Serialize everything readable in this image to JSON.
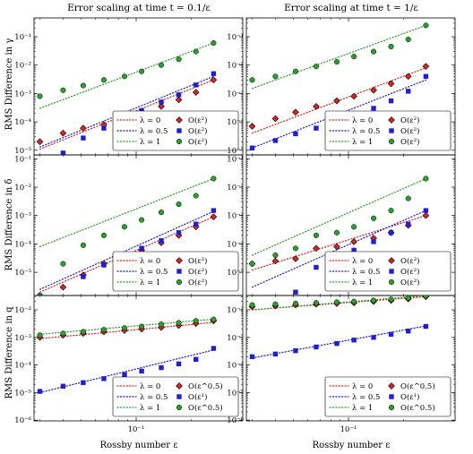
{
  "figure": {
    "col_titles": [
      "Error scaling at time t = 0.1/ε",
      "Error scaling at time t = 1/ε"
    ],
    "row_ylabels": [
      "RMS Difference in γ",
      "RMS Difference in δ",
      "RMS Difference in q"
    ],
    "xlabel": "Rossby number ε",
    "x_tick_label": "10⁻¹",
    "y_tick_labels": [
      "10⁻⁶",
      "10⁻⁵",
      "10⁻⁴",
      "10⁻³",
      "10⁻²",
      "10⁻¹"
    ],
    "y_tick_labels_bottom_row": [
      "10⁻⁶",
      "10⁻⁵",
      "10⁻⁴",
      "10⁻³",
      "10⁻²"
    ]
  },
  "colors": {
    "red": "#d62728",
    "blue": "#1f1fd0",
    "green": "#2ca02c"
  },
  "chart_data": [
    {
      "type": "scatter",
      "row": 0,
      "col": 0,
      "xscale": "log",
      "yscale": "log",
      "xlim": [
        0.02,
        0.3
      ],
      "ylim": [
        1e-06,
        0.3
      ],
      "legend_position": "lower-right",
      "legend_lines": [
        "λ = 0",
        "λ = 0.5",
        "λ = 1"
      ],
      "legend_markers": [
        "O(ε²)",
        "O(ε²)",
        "O(ε²)"
      ],
      "x": [
        0.0299,
        0.04,
        0.0515,
        0.0667,
        0.0864,
        0.1071,
        0.137,
        0.1706,
        0.2116,
        0.2639
      ],
      "series": [
        {
          "color": "red",
          "marker": "diamond",
          "values": [
            2e-05,
            4e-05,
            6e-05,
            8e-05,
            0.00013,
            0.0002,
            0.00035,
            0.0006,
            0.0011,
            0.003
          ],
          "fit": [
            [
              0.0299,
              1.1e-05
            ],
            [
              0.2639,
              0.003
            ]
          ]
        },
        {
          "color": "blue",
          "marker": "square",
          "values": [
            4e-06,
            8e-06,
            2.7e-05,
            6e-05,
            0.00013,
            0.00025,
            0.0005,
            0.0009,
            0.002,
            0.005
          ],
          "fit": [
            [
              0.0299,
              1.3e-05
            ],
            [
              0.2639,
              0.004
            ]
          ]
        },
        {
          "color": "green",
          "marker": "circle",
          "values": [
            0.0008,
            0.0013,
            0.0019,
            0.003,
            0.004,
            0.006,
            0.01,
            0.016,
            0.03,
            0.06
          ],
          "fit": [
            [
              0.0299,
              0.0003
            ],
            [
              0.2639,
              0.06
            ]
          ]
        }
      ]
    },
    {
      "type": "scatter",
      "row": 0,
      "col": 1,
      "xscale": "log",
      "yscale": "log",
      "xlim": [
        0.02,
        0.3
      ],
      "ylim": [
        1e-06,
        0.3
      ],
      "legend_position": "lower-right",
      "legend_lines": [
        "λ = 0",
        "λ = 0.5",
        "λ = 1"
      ],
      "legend_markers": [
        "O(ε²)",
        "O(ε²)",
        "O(ε²)"
      ],
      "x": [
        0.0299,
        0.04,
        0.0515,
        0.0667,
        0.0864,
        0.1071,
        0.137,
        0.1706,
        0.2116,
        0.2639
      ],
      "series": [
        {
          "color": "red",
          "marker": "diamond",
          "values": [
            7e-05,
            0.00013,
            0.00022,
            0.00035,
            0.00055,
            0.0008,
            0.0013,
            0.0022,
            0.004,
            0.009
          ],
          "fit": [
            [
              0.0299,
              4e-05
            ],
            [
              0.2639,
              0.008
            ]
          ]
        },
        {
          "color": "blue",
          "marker": "square",
          "values": [
            1.2e-05,
            2.2e-05,
            3.8e-05,
            6e-05,
            0.0001,
            0.00018,
            0.0003,
            0.00055,
            0.0012,
            0.004
          ],
          "fit": [
            [
              0.0299,
              1.2e-05
            ],
            [
              0.2639,
              0.003
            ]
          ]
        },
        {
          "color": "green",
          "marker": "circle",
          "values": [
            0.003,
            0.004,
            0.006,
            0.009,
            0.013,
            0.02,
            0.03,
            0.045,
            0.08,
            0.25
          ],
          "fit": [
            [
              0.0299,
              0.0015
            ],
            [
              0.2639,
              0.25
            ]
          ]
        }
      ]
    },
    {
      "type": "scatter",
      "row": 1,
      "col": 0,
      "xscale": "log",
      "yscale": "log",
      "xlim": [
        0.02,
        0.3
      ],
      "ylim": [
        1e-07,
        0.3
      ],
      "legend_position": "lower-right",
      "legend_lines": [
        "λ = 0",
        "λ = 0.5",
        "λ = 1"
      ],
      "legend_markers": [
        "O(ε²)",
        "O(ε²)",
        "O(ε²)"
      ],
      "x": [
        0.0299,
        0.04,
        0.0515,
        0.0667,
        0.0864,
        0.1071,
        0.137,
        0.1706,
        0.2116,
        0.2639
      ],
      "series": [
        {
          "color": "red",
          "marker": "diamond",
          "values": [
            1.5e-06,
            3e-06,
            8e-06,
            2e-05,
            4e-05,
            6e-05,
            0.00011,
            0.0002,
            0.0004,
            0.0009
          ],
          "fit": [
            [
              0.0299,
              2e-06
            ],
            [
              0.2639,
              0.0009
            ]
          ]
        },
        {
          "color": "blue",
          "marker": "square",
          "values": [
            1.5e-06,
            1.3e-06,
            7e-06,
            1.8e-05,
            4e-05,
            7e-05,
            0.00013,
            0.00025,
            0.0005,
            0.0015
          ],
          "fit": [
            [
              0.0299,
              2.5e-06
            ],
            [
              0.2639,
              0.0014
            ]
          ]
        },
        {
          "color": "green",
          "marker": "circle",
          "values": [
            1.5e-06,
            2e-05,
            9e-05,
            0.0002,
            0.0004,
            0.0007,
            0.0013,
            0.0025,
            0.005,
            0.02
          ],
          "fit": [
            [
              0.0299,
              8e-05
            ],
            [
              0.2639,
              0.02
            ]
          ]
        }
      ]
    },
    {
      "type": "scatter",
      "row": 1,
      "col": 1,
      "xscale": "log",
      "yscale": "log",
      "xlim": [
        0.02,
        0.3
      ],
      "ylim": [
        1e-07,
        0.3
      ],
      "legend_position": "lower-right",
      "legend_lines": [
        "λ = 0",
        "λ = 0.5",
        "λ = 1"
      ],
      "legend_markers": [
        "O(ε²)",
        "O(ε²)",
        "O(ε²)"
      ],
      "x": [
        0.0299,
        0.04,
        0.0515,
        0.0667,
        0.0864,
        0.1071,
        0.137,
        0.1706,
        0.2116,
        0.2639
      ],
      "series": [
        {
          "color": "red",
          "marker": "diamond",
          "values": [
            2e-05,
            2.5e-05,
            3e-05,
            7e-05,
            8e-05,
            0.00012,
            0.00016,
            0.00025,
            0.00045,
            0.001
          ],
          "fit": [
            [
              0.0299,
              1.2e-05
            ],
            [
              0.2639,
              0.001
            ]
          ]
        },
        {
          "color": "blue",
          "marker": "square",
          "values": [
            7e-07,
            1.2e-06,
            2e-06,
            1.5e-05,
            3e-05,
            6e-05,
            0.00012,
            0.00025,
            0.0005,
            0.0015
          ],
          "fit": [
            [
              0.0299,
              3e-06
            ],
            [
              0.2639,
              0.0015
            ]
          ]
        },
        {
          "color": "green",
          "marker": "circle",
          "values": [
            2e-05,
            4e-05,
            7e-05,
            0.0002,
            0.00025,
            0.0004,
            0.0008,
            0.0015,
            0.004,
            0.02
          ],
          "fit": [
            [
              0.0299,
              4e-05
            ],
            [
              0.2639,
              0.02
            ]
          ]
        }
      ]
    },
    {
      "type": "scatter",
      "row": 2,
      "col": 0,
      "xscale": "log",
      "yscale": "log",
      "xlim": [
        0.02,
        0.3
      ],
      "ylim": [
        1e-06,
        0.05
      ],
      "legend_position": "lower-right",
      "legend_lines": [
        "λ = 0",
        "λ = 0.5",
        "λ = 1"
      ],
      "legend_markers": [
        "O(ε^0.5)",
        "O(ε¹)",
        "O(ε^0.5)"
      ],
      "x": [
        0.0299,
        0.04,
        0.0515,
        0.0667,
        0.0864,
        0.1071,
        0.137,
        0.1706,
        0.2116,
        0.2639
      ],
      "series": [
        {
          "color": "red",
          "marker": "diamond",
          "values": [
            0.001,
            0.0012,
            0.0014,
            0.0016,
            0.0018,
            0.002,
            0.0023,
            0.0027,
            0.0032,
            0.004
          ],
          "fit": [
            [
              0.0299,
              0.0009
            ],
            [
              0.2639,
              0.0035
            ]
          ]
        },
        {
          "color": "blue",
          "marker": "square",
          "values": [
            1.1e-05,
            1.7e-05,
            2.3e-05,
            3.2e-05,
            4.5e-05,
            6e-05,
            8e-05,
            0.00011,
            0.00016,
            0.0004
          ],
          "fit": [
            [
              0.0299,
              1e-05
            ],
            [
              0.2639,
              0.00035
            ]
          ]
        },
        {
          "color": "green",
          "marker": "circle",
          "values": [
            0.0012,
            0.0014,
            0.0016,
            0.0019,
            0.0022,
            0.0025,
            0.003,
            0.0034,
            0.004,
            0.0045
          ],
          "fit": [
            [
              0.0299,
              0.0013
            ],
            [
              0.2639,
              0.0046
            ]
          ]
        }
      ]
    },
    {
      "type": "scatter",
      "row": 2,
      "col": 1,
      "xscale": "log",
      "yscale": "log",
      "xlim": [
        0.02,
        0.3
      ],
      "ylim": [
        1e-06,
        0.05
      ],
      "legend_position": "lower-right",
      "legend_lines": [
        "λ = 0",
        "λ = 0.5",
        "λ = 1"
      ],
      "legend_markers": [
        "O(ε^0.5)",
        "O(ε¹)",
        "O(ε^0.5)"
      ],
      "x": [
        0.0299,
        0.04,
        0.0515,
        0.0667,
        0.0864,
        0.1071,
        0.137,
        0.1706,
        0.2116,
        0.2639
      ],
      "series": [
        {
          "color": "red",
          "marker": "diamond",
          "values": [
            0.013,
            0.014,
            0.015,
            0.016,
            0.017,
            0.018,
            0.02,
            0.022,
            0.025,
            0.03
          ],
          "fit": [
            [
              0.0299,
              0.01
            ],
            [
              0.2639,
              0.03
            ]
          ]
        },
        {
          "color": "blue",
          "marker": "square",
          "values": [
            0.0002,
            0.00025,
            0.00033,
            0.00045,
            0.0006,
            0.0008,
            0.001,
            0.0013,
            0.0017,
            0.0025
          ],
          "fit": [
            [
              0.0299,
              0.00018
            ],
            [
              0.2639,
              0.0026
            ]
          ]
        },
        {
          "color": "green",
          "marker": "circle",
          "values": [
            0.015,
            0.016,
            0.017,
            0.018,
            0.019,
            0.02,
            0.022,
            0.024,
            0.027,
            0.032
          ],
          "fit": [
            [
              0.0299,
              0.01
            ],
            [
              0.2639,
              0.033
            ]
          ]
        }
      ]
    }
  ]
}
